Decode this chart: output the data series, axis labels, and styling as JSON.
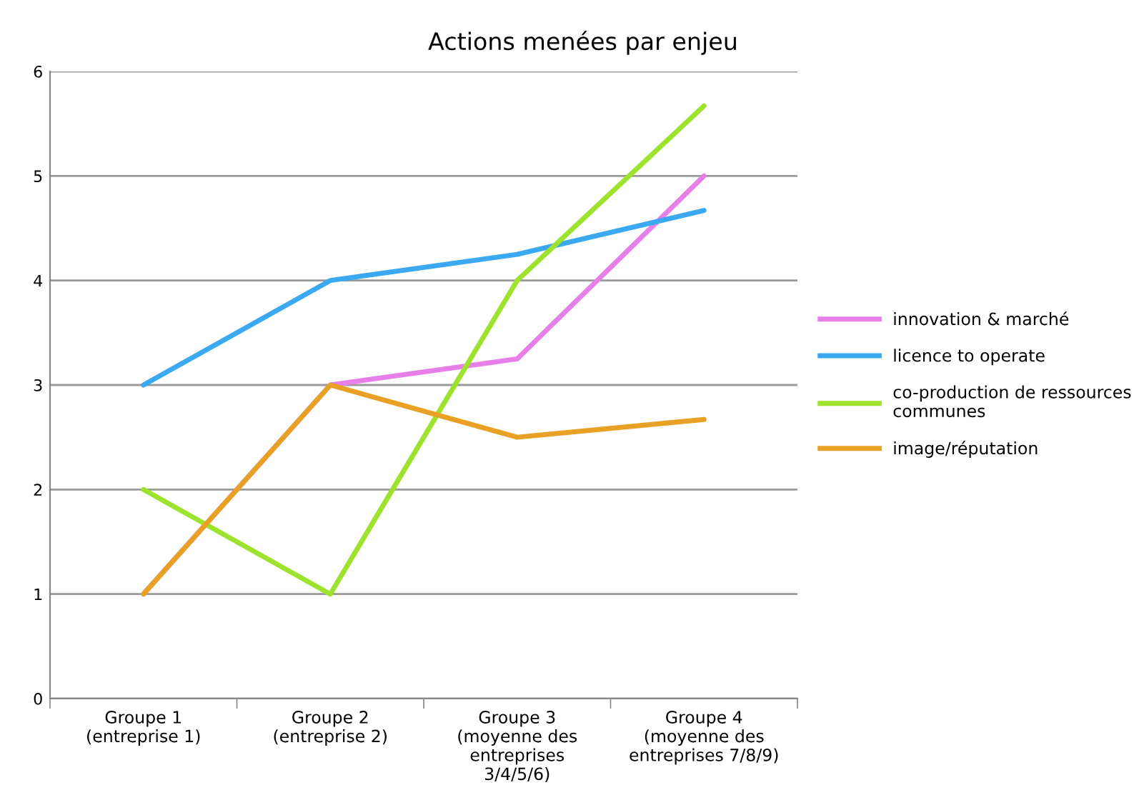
{
  "chart_data": {
    "type": "line",
    "title": "Actions menées par enjeu",
    "categories": [
      "Groupe 1\n(entreprise 1)",
      "Groupe 2\n(entreprise 2)",
      "Groupe 3\n(moyenne des\nentreprises\n3/4/5/6)",
      "Groupe 4\n(moyenne des\nentreprises 7/8/9)"
    ],
    "series": [
      {
        "name": "innovation & marché",
        "color": "#e680e8",
        "values": [
          1,
          3,
          3.25,
          5
        ]
      },
      {
        "name": "licence to operate",
        "color": "#3aa9f2",
        "values": [
          3,
          4,
          4.25,
          4.67
        ]
      },
      {
        "name": "co-production de ressources\ncommunes",
        "color": "#9de22c",
        "values": [
          2,
          1,
          4,
          5.67
        ]
      },
      {
        "name": "image/réputation",
        "color": "#e9a125",
        "values": [
          1,
          3,
          2.5,
          2.67
        ]
      }
    ],
    "ylim": [
      0,
      6
    ],
    "yticks": [
      0,
      1,
      2,
      3,
      4,
      5,
      6
    ],
    "grid": "y",
    "legend": "right",
    "marker": "none",
    "line_style": "solid"
  }
}
